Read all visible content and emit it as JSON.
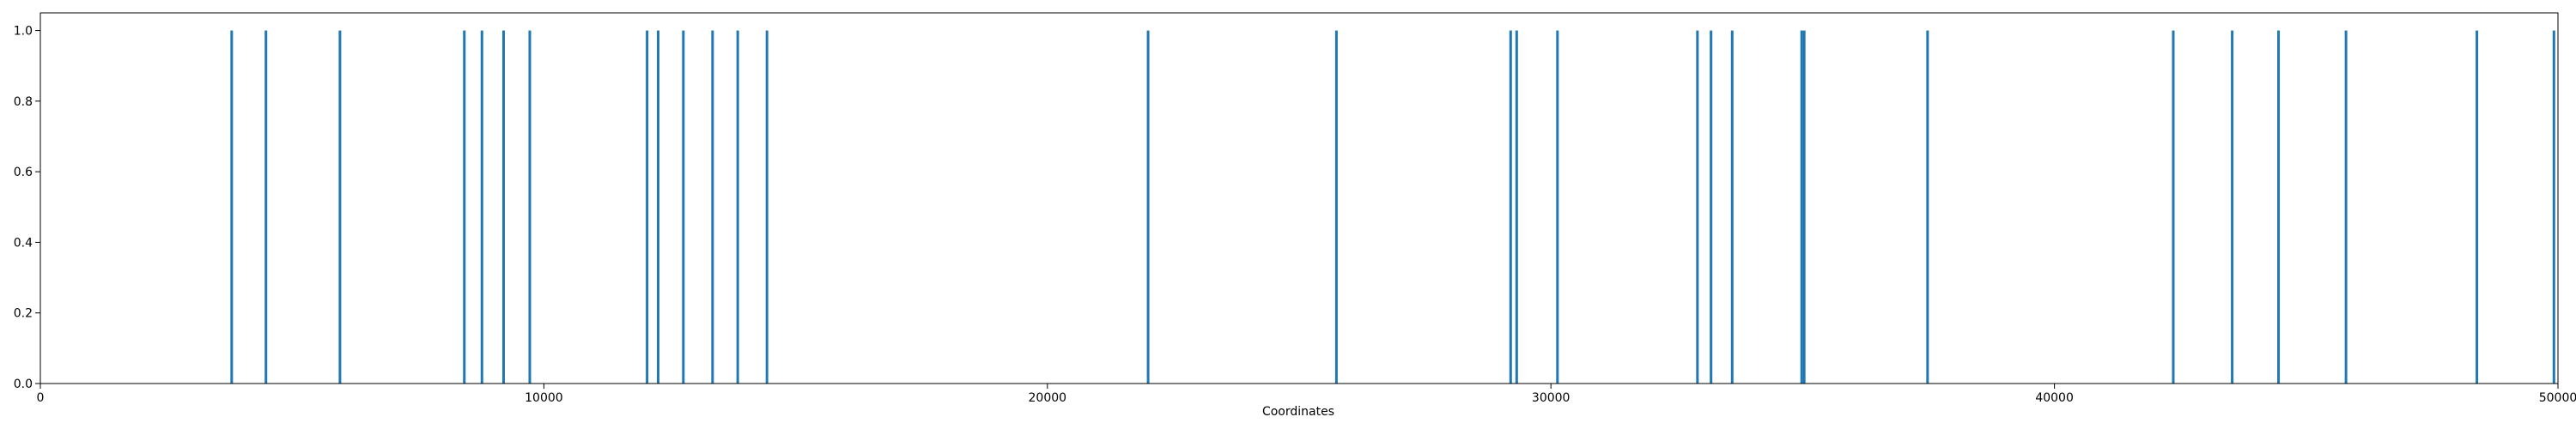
{
  "chart_data": {
    "type": "bar",
    "title": "",
    "xlabel": "Coordinates",
    "ylabel": "",
    "xlim": [
      0,
      50000
    ],
    "ylim": [
      0,
      1.05
    ],
    "xticks": [
      0,
      10000,
      20000,
      30000,
      40000,
      50000
    ],
    "xtick_labels": [
      "0",
      "10000",
      "20000",
      "30000",
      "40000",
      "50000"
    ],
    "yticks": [
      0.0,
      0.2,
      0.4,
      0.6,
      0.8,
      1.0
    ],
    "ytick_labels": [
      "0.0",
      "0.2",
      "0.4",
      "0.6",
      "0.8",
      "1.0"
    ],
    "grid": false,
    "bar_color": "#1f77b4",
    "x": [
      3800,
      4480,
      5950,
      8420,
      8770,
      9200,
      9720,
      12050,
      12270,
      12770,
      13350,
      13850,
      14430,
      22000,
      25740,
      29200,
      29320,
      30130,
      32910,
      33180,
      33600,
      34980,
      35030,
      37480,
      42360,
      43530,
      44450,
      45790,
      48390,
      49920
    ],
    "values": [
      1,
      1,
      1,
      1,
      1,
      1,
      1,
      1,
      1,
      1,
      1,
      1,
      1,
      1,
      1,
      1,
      1,
      1,
      1,
      1,
      1,
      1,
      1,
      1,
      1,
      1,
      1,
      1,
      1,
      1
    ]
  }
}
